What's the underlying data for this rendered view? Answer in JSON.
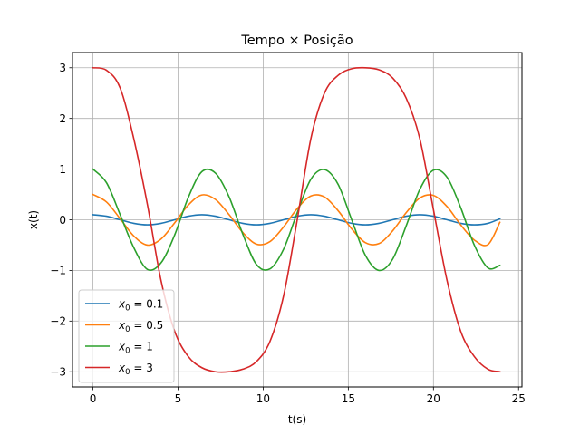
{
  "chart_data": {
    "type": "line",
    "title": "Tempo × Posição",
    "xlabel": "t(s)",
    "ylabel": "x(t)",
    "xlim": [
      -1.2,
      25.2
    ],
    "ylim": [
      -3.3,
      3.3
    ],
    "xticks": [
      0,
      5,
      10,
      15,
      20,
      25
    ],
    "yticks": [
      -3,
      -2,
      -1,
      0,
      1,
      2,
      3
    ],
    "grid": true,
    "legend_position": "lower-left",
    "series": [
      {
        "name": "x0 = 0.1",
        "label_main": "x",
        "label_sub": "0",
        "label_rest": " = 0.1",
        "color": "#1f77b4",
        "x": [
          0,
          0.8,
          1.6,
          2.4,
          3.2,
          4.0,
          4.8,
          5.6,
          6.4,
          7.2,
          8.0,
          8.8,
          9.6,
          10.4,
          11.2,
          12.0,
          12.8,
          13.6,
          14.4,
          15.2,
          16.0,
          16.8,
          17.6,
          18.4,
          19.2,
          20.0,
          20.8,
          21.6,
          22.4,
          23.2,
          23.9
        ],
        "y": [
          0.1,
          0.07,
          0.0,
          -0.07,
          -0.1,
          -0.07,
          0.0,
          0.07,
          0.1,
          0.07,
          0.0,
          -0.07,
          -0.1,
          -0.07,
          0.0,
          0.07,
          0.1,
          0.07,
          0.0,
          -0.07,
          -0.1,
          -0.07,
          0.0,
          0.07,
          0.1,
          0.07,
          0.0,
          -0.07,
          -0.1,
          -0.07,
          0.02
        ]
      },
      {
        "name": "x0 = 0.5",
        "label_main": "x",
        "label_sub": "0",
        "label_rest": " = 0.5",
        "color": "#ff7f0e",
        "x": [
          0,
          0.8,
          1.6,
          2.4,
          3.2,
          4.0,
          4.8,
          5.6,
          6.4,
          7.2,
          8.0,
          8.8,
          9.6,
          10.4,
          11.2,
          12.0,
          12.8,
          13.6,
          14.4,
          15.2,
          16.0,
          16.8,
          17.6,
          18.4,
          19.2,
          20.0,
          20.8,
          21.6,
          22.4,
          23.2,
          23.9
        ],
        "y": [
          0.5,
          0.35,
          0.02,
          -0.32,
          -0.5,
          -0.38,
          -0.06,
          0.29,
          0.49,
          0.4,
          0.1,
          -0.25,
          -0.48,
          -0.43,
          -0.14,
          0.22,
          0.47,
          0.45,
          0.18,
          -0.18,
          -0.45,
          -0.47,
          -0.22,
          0.14,
          0.43,
          0.48,
          0.26,
          -0.1,
          -0.4,
          -0.49,
          -0.05
        ]
      },
      {
        "name": "x0 = 1",
        "label_main": "x",
        "label_sub": "0",
        "label_rest": " = 1",
        "color": "#2ca02c",
        "x": [
          0,
          0.8,
          1.6,
          2.4,
          3.2,
          4.0,
          4.8,
          5.6,
          6.4,
          7.2,
          8.0,
          8.8,
          9.6,
          10.4,
          11.2,
          12.0,
          12.8,
          13.6,
          14.4,
          15.2,
          16.0,
          16.8,
          17.6,
          18.4,
          19.2,
          20.0,
          20.8,
          21.6,
          22.4,
          23.2,
          23.9
        ],
        "y": [
          1.0,
          0.73,
          0.1,
          -0.55,
          -0.98,
          -0.85,
          -0.3,
          0.44,
          0.95,
          0.92,
          0.45,
          -0.28,
          -0.88,
          -0.97,
          -0.58,
          0.14,
          0.8,
          0.99,
          0.7,
          0.0,
          -0.7,
          -1.0,
          -0.78,
          -0.12,
          0.6,
          0.98,
          0.84,
          0.24,
          -0.5,
          -0.95,
          -0.9
        ]
      },
      {
        "name": "x0 = 3",
        "label_main": "x",
        "label_sub": "0",
        "label_rest": " = 3",
        "color": "#d62728",
        "x": [
          0,
          0.8,
          1.6,
          2.4,
          3.2,
          4.0,
          4.8,
          5.6,
          6.4,
          7.2,
          8.0,
          8.8,
          9.6,
          10.4,
          11.2,
          12.0,
          12.8,
          13.6,
          14.4,
          15.2,
          16.0,
          16.8,
          17.6,
          18.4,
          19.2,
          20.0,
          20.8,
          21.6,
          22.4,
          23.2,
          23.9
        ],
        "y": [
          3.0,
          2.95,
          2.6,
          1.6,
          0.3,
          -1.2,
          -2.2,
          -2.7,
          -2.92,
          -3.0,
          -3.0,
          -2.95,
          -2.8,
          -2.4,
          -1.5,
          0.0,
          1.6,
          2.5,
          2.85,
          2.98,
          3.0,
          2.96,
          2.8,
          2.4,
          1.6,
          0.2,
          -1.2,
          -2.2,
          -2.7,
          -2.95,
          -3.0
        ]
      }
    ]
  }
}
